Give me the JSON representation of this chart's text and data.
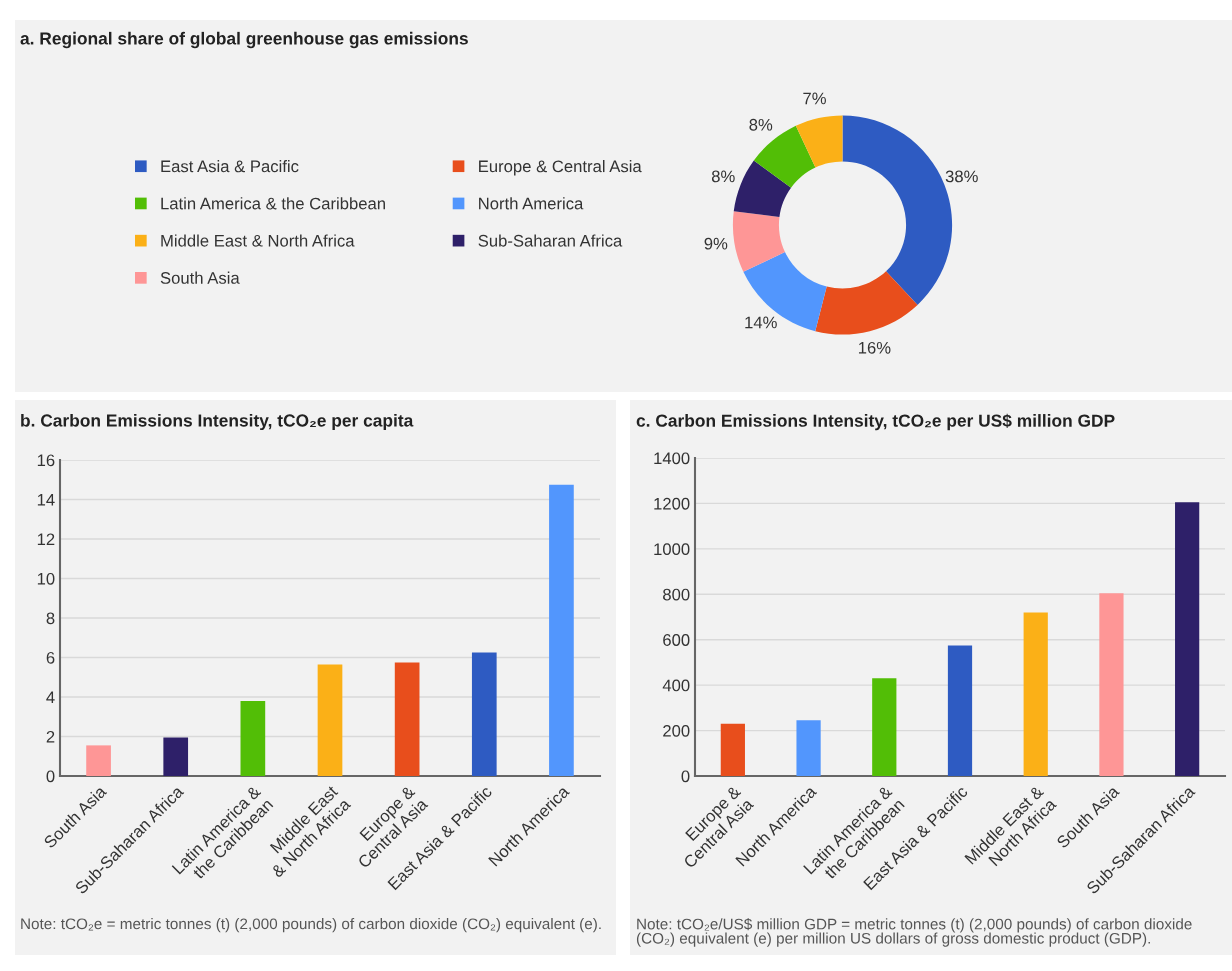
{
  "chart_data": [
    {
      "type": "donut",
      "title": "a. Regional share of global greenhouse gas emissions",
      "categories": [
        "East Asia & Pacific",
        "Europe & Central Asia",
        "North America",
        "South Asia",
        "Sub-Saharan Africa",
        "Latin America & the Caribbean",
        "Middle East & North Africa"
      ],
      "values": [
        38,
        16,
        14,
        9,
        8,
        8,
        7
      ],
      "colors": [
        "#2e5bc2",
        "#e84e1c",
        "#5296fd",
        "#fe9696",
        "#2e2069",
        "#52be06",
        "#fbb017"
      ],
      "value_labels": [
        "38%",
        "16%",
        "14%",
        "9%",
        "8%",
        "8%",
        "7%"
      ],
      "legend": "left"
    },
    {
      "type": "bar",
      "title": "b. Carbon Emissions Intensity, tCO₂e per capita",
      "categories": [
        "South Asia",
        "Sub-Saharan Africa",
        "Latin America &\nthe Caribbean",
        "Middle East\n& North Africa",
        "Europe &\nCentral Asia",
        "East Asia & Pacific",
        "North America"
      ],
      "values": [
        1.55,
        1.95,
        3.8,
        5.65,
        5.75,
        6.25,
        14.75
      ],
      "colors": [
        "#fe9696",
        "#2e2069",
        "#52be06",
        "#fbb017",
        "#e84e1c",
        "#2e5bc2",
        "#5296fd"
      ],
      "ylim": [
        0,
        16
      ],
      "yticks": [
        0,
        2,
        4,
        6,
        8,
        10,
        12,
        14,
        16
      ],
      "grid": "y",
      "annotations": [
        "Note: tCO₂e = metric tonnes (t) (2,000 pounds) of carbon dioxide (CO₂) equivalent (e)."
      ]
    },
    {
      "type": "bar",
      "title": "c. Carbon Emissions Intensity, tCO₂e per US$ million GDP",
      "categories": [
        "Europe &\nCentral Asia",
        "North America",
        "Latin America &\nthe Caribbean",
        "East Asia & Pacific",
        "Middle East &\nNorth Africa",
        "South Asia",
        "Sub-Saharan Africa"
      ],
      "values": [
        230,
        245,
        430,
        575,
        720,
        805,
        1205
      ],
      "colors": [
        "#e84e1c",
        "#5296fd",
        "#52be06",
        "#2e5bc2",
        "#fbb017",
        "#fe9696",
        "#2e2069"
      ],
      "ylim": [
        0,
        1400
      ],
      "yticks": [
        0,
        200,
        400,
        600,
        800,
        1000,
        1200,
        1400
      ],
      "grid": "y",
      "annotations": [
        "Note: tCO₂e/US$ million GDP = metric tonnes (t) (2,000 pounds) of carbon dioxide\n(CO₂) equivalent (e) per million US dollars of gross domestic product (GDP)."
      ]
    }
  ]
}
